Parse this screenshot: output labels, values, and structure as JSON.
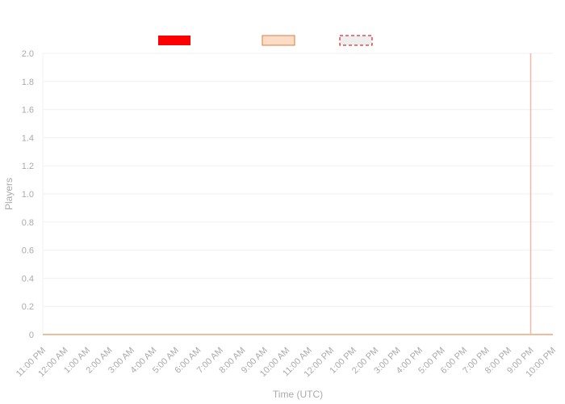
{
  "chart_data": {
    "type": "line",
    "title": "",
    "xlabel": "Time (UTC)",
    "ylabel": "Players",
    "ylim": [
      0,
      2.0
    ],
    "y_ticks": [
      0,
      0.2,
      0.4,
      0.6,
      0.8,
      1.0,
      1.2,
      1.4,
      1.6,
      1.8,
      2.0
    ],
    "y_tick_labels": [
      "0",
      "0.2",
      "0.4",
      "0.6",
      "0.8",
      "1.0",
      "1.2",
      "1.4",
      "1.6",
      "1.8",
      "2.0"
    ],
    "x_labels": [
      "11:00 PM",
      "12:00 AM",
      "1:00 AM",
      "2:00 AM",
      "3:00 AM",
      "4:00 AM",
      "5:00 AM",
      "6:00 AM",
      "7:00 AM",
      "8:00 AM",
      "9:00 AM",
      "10:00 AM",
      "11:00 AM",
      "12:00 PM",
      "1:00 PM",
      "2:00 PM",
      "3:00 PM",
      "4:00 PM",
      "5:00 PM",
      "6:00 PM",
      "7:00 PM",
      "8:00 PM",
      "9:00 PM",
      "10:00 PM"
    ],
    "grid": true,
    "legend_position": "top-center",
    "series": [
      {
        "values": [
          0,
          0,
          0,
          0,
          0,
          0,
          0,
          0,
          0,
          0,
          0,
          0,
          0,
          0,
          0,
          0,
          0,
          0,
          0,
          0,
          0,
          0,
          0,
          0
        ],
        "color": "#ff0000",
        "legend_style": "solid-fill"
      },
      {
        "values": [
          0,
          0,
          0,
          0,
          0,
          0,
          0,
          0,
          0,
          0,
          0,
          0,
          0,
          0,
          0,
          0,
          0,
          0,
          0,
          0,
          0,
          0,
          0,
          0
        ],
        "color": "#e07b39",
        "fill_color": "#fbdcc6",
        "legend_style": "outlined-fill"
      },
      {
        "values": [],
        "color": "#cc0000",
        "fill_color": "#eeeeee",
        "legend_style": "dashed-outline"
      }
    ],
    "vertical_marker": {
      "x_label": "9:00 PM",
      "color": "#f2b9a9"
    },
    "colors": {
      "axis_text": "#aaaaaa",
      "grid": "#f0f0f0",
      "baseline": "#e07b39"
    }
  }
}
